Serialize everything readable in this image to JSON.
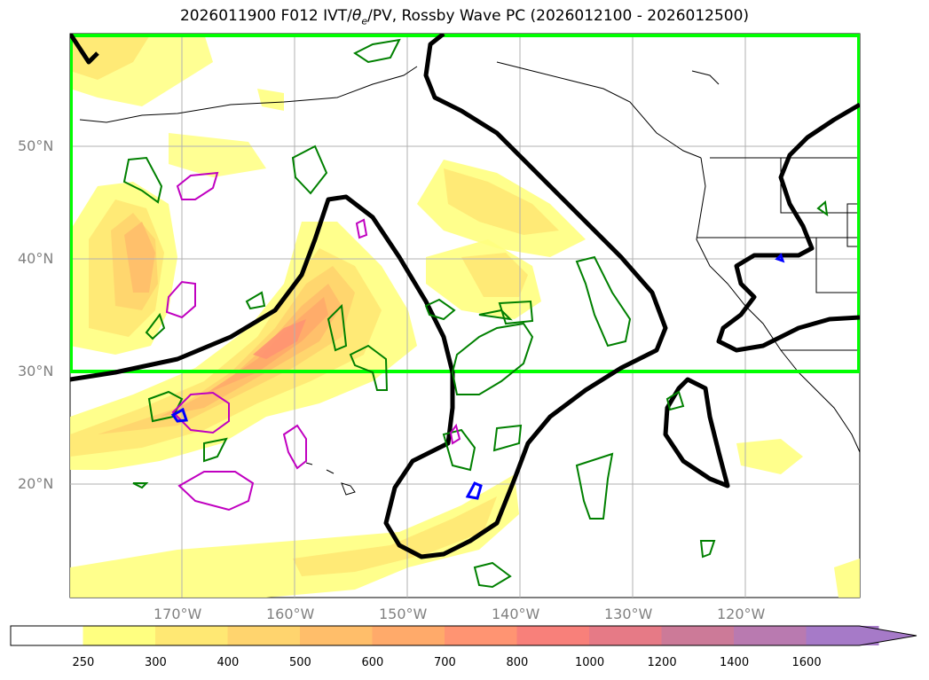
{
  "title_prefix": "2026011900 F012 IVT/",
  "title_theta": "θ",
  "title_sub": "e",
  "title_suffix": "/PV, Rossby Wave PC (2026012100 - 2026012500)",
  "lat_labels": [
    "50°N",
    "40°N",
    "30°N",
    "20°N"
  ],
  "lon_labels": [
    "170°W",
    "160°W",
    "150°W",
    "140°W",
    "130°W",
    "120°W"
  ],
  "colorbar": {
    "ticks": [
      "250",
      "300",
      "400",
      "500",
      "600",
      "700",
      "800",
      "1000",
      "1200",
      "1400",
      "1600"
    ],
    "colors": [
      "#ffff80",
      "#ffe873",
      "#ffd46e",
      "#ffbe6a",
      "#ffaa6a",
      "#ff9472",
      "#f8807a",
      "#e67a86",
      "#cc7a98",
      "#b97ab0",
      "#a67ac8"
    ],
    "extend": "max"
  },
  "colors": {
    "box": "#00ff00",
    "ridge_contour": "#000000",
    "theta_e_positive": "#008000",
    "pv_positive": "#c000c0",
    "pv_negative": "#0000ff"
  }
}
